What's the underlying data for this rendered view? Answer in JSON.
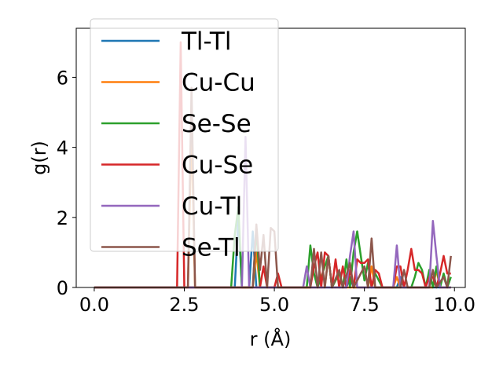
{
  "chart_data": {
    "type": "line",
    "xlabel": "r (Å)",
    "ylabel": "g(r)",
    "xlim": [
      -0.5,
      10.3
    ],
    "ylim": [
      0,
      7.4
    ],
    "xticks": [
      0.0,
      2.5,
      5.0,
      7.5,
      10.0
    ],
    "xtick_labels": [
      "0.0",
      "2.5",
      "5.0",
      "7.5",
      "10.0"
    ],
    "yticks": [
      0,
      2,
      4,
      6
    ],
    "ytick_labels": [
      "0",
      "2",
      "4",
      "6"
    ],
    "grid": false,
    "legend_position": "top-left",
    "series": [
      {
        "name": "Tl-Tl",
        "color": "#1f77b4",
        "points": [
          [
            0,
            0
          ],
          [
            3.9,
            0
          ],
          [
            4.0,
            2.0
          ],
          [
            4.1,
            0
          ],
          [
            4.3,
            0
          ],
          [
            4.4,
            1.6
          ],
          [
            4.5,
            0
          ],
          [
            7.0,
            0
          ],
          [
            7.1,
            0.3
          ],
          [
            7.2,
            0
          ],
          [
            8.4,
            0
          ],
          [
            8.5,
            0.3
          ],
          [
            8.6,
            0
          ],
          [
            9.9,
            0
          ]
        ]
      },
      {
        "name": "Cu-Cu",
        "color": "#ff7f0e",
        "points": [
          [
            0,
            0
          ],
          [
            2.6,
            0
          ],
          [
            2.7,
            4.5
          ],
          [
            2.8,
            0
          ],
          [
            4.4,
            0
          ],
          [
            4.5,
            1.0
          ],
          [
            4.6,
            0
          ],
          [
            6.4,
            0
          ],
          [
            6.5,
            0.9
          ],
          [
            6.6,
            0
          ],
          [
            7.6,
            0
          ],
          [
            7.7,
            0.6
          ],
          [
            7.8,
            0
          ],
          [
            8.3,
            0
          ],
          [
            8.4,
            0.3
          ],
          [
            8.5,
            0
          ],
          [
            9.4,
            0
          ],
          [
            9.5,
            0.5
          ],
          [
            9.6,
            0
          ],
          [
            9.9,
            0
          ]
        ]
      },
      {
        "name": "Se-Se",
        "color": "#2ca02c",
        "points": [
          [
            0,
            0
          ],
          [
            3.8,
            0
          ],
          [
            3.9,
            1.5
          ],
          [
            4.0,
            2.3
          ],
          [
            4.1,
            0
          ],
          [
            4.4,
            0
          ],
          [
            4.5,
            1.7
          ],
          [
            4.6,
            0
          ],
          [
            5.9,
            0
          ],
          [
            6.0,
            1.2
          ],
          [
            6.1,
            0.4
          ],
          [
            6.2,
            0
          ],
          [
            6.5,
            0.9
          ],
          [
            6.6,
            0
          ],
          [
            6.8,
            0.4
          ],
          [
            6.9,
            0
          ],
          [
            7.0,
            0.8
          ],
          [
            7.1,
            0
          ],
          [
            7.2,
            1.0
          ],
          [
            7.3,
            1.6
          ],
          [
            7.4,
            0.9
          ],
          [
            7.5,
            0.2
          ],
          [
            7.6,
            0.7
          ],
          [
            7.7,
            0
          ],
          [
            7.8,
            0.4
          ],
          [
            7.9,
            0.2
          ],
          [
            8.0,
            0
          ],
          [
            8.8,
            0
          ],
          [
            8.9,
            0.3
          ],
          [
            9.0,
            0.7
          ],
          [
            9.1,
            0.5
          ],
          [
            9.2,
            0
          ],
          [
            9.3,
            0.5
          ],
          [
            9.4,
            0
          ],
          [
            9.5,
            0.6
          ],
          [
            9.6,
            0
          ],
          [
            9.7,
            0.4
          ],
          [
            9.8,
            0
          ],
          [
            9.9,
            0.3
          ]
        ]
      },
      {
        "name": "Cu-Se",
        "color": "#d62728",
        "points": [
          [
            0,
            0
          ],
          [
            2.3,
            0
          ],
          [
            2.4,
            7.0
          ],
          [
            2.5,
            0
          ],
          [
            4.6,
            0
          ],
          [
            4.7,
            0.6
          ],
          [
            4.8,
            0
          ],
          [
            5.0,
            0
          ],
          [
            5.1,
            0.4
          ],
          [
            5.2,
            0
          ],
          [
            6.0,
            0
          ],
          [
            6.1,
            0.6
          ],
          [
            6.2,
            1.0
          ],
          [
            6.3,
            0
          ],
          [
            6.4,
            1.0
          ],
          [
            6.5,
            0.9
          ],
          [
            6.6,
            0
          ],
          [
            6.7,
            0.8
          ],
          [
            6.8,
            0
          ],
          [
            6.9,
            0.6
          ],
          [
            7.0,
            0
          ],
          [
            7.1,
            0.5
          ],
          [
            7.2,
            0
          ],
          [
            7.3,
            0.8
          ],
          [
            7.4,
            0.7
          ],
          [
            7.5,
            0.7
          ],
          [
            7.6,
            0.8
          ],
          [
            7.7,
            0
          ],
          [
            7.8,
            0.5
          ],
          [
            7.9,
            0.4
          ],
          [
            8.0,
            0
          ],
          [
            8.3,
            0
          ],
          [
            8.4,
            0.6
          ],
          [
            8.5,
            0.6
          ],
          [
            8.6,
            0
          ],
          [
            8.7,
            0.5
          ],
          [
            8.8,
            1.1
          ],
          [
            8.9,
            0.5
          ],
          [
            9.0,
            0.5
          ],
          [
            9.1,
            0.4
          ],
          [
            9.2,
            0
          ],
          [
            9.3,
            0.3
          ],
          [
            9.4,
            0.3
          ],
          [
            9.5,
            0
          ],
          [
            9.6,
            0.4
          ],
          [
            9.7,
            0.9
          ],
          [
            9.8,
            0.4
          ],
          [
            9.9,
            0.4
          ]
        ]
      },
      {
        "name": "Cu-Tl",
        "color": "#9467bd",
        "points": [
          [
            0,
            0
          ],
          [
            4.1,
            0
          ],
          [
            4.2,
            4.3
          ],
          [
            4.3,
            0
          ],
          [
            5.8,
            0
          ],
          [
            5.9,
            0.6
          ],
          [
            6.0,
            0
          ],
          [
            7.0,
            0
          ],
          [
            7.1,
            0.9
          ],
          [
            7.2,
            1.6
          ],
          [
            7.3,
            0
          ],
          [
            8.3,
            0
          ],
          [
            8.4,
            1.2
          ],
          [
            8.5,
            0
          ],
          [
            9.3,
            0
          ],
          [
            9.4,
            1.9
          ],
          [
            9.5,
            0.9
          ],
          [
            9.6,
            0
          ],
          [
            9.9,
            0
          ]
        ]
      },
      {
        "name": "Se-Tl",
        "color": "#8c564b",
        "points": [
          [
            0,
            0
          ],
          [
            2.6,
            0
          ],
          [
            2.7,
            5.7
          ],
          [
            2.8,
            0
          ],
          [
            4.4,
            0
          ],
          [
            4.5,
            1.8
          ],
          [
            4.6,
            0.5
          ],
          [
            4.7,
            1.5
          ],
          [
            4.8,
            0
          ],
          [
            4.9,
            1.7
          ],
          [
            5.0,
            1.6
          ],
          [
            5.1,
            0
          ],
          [
            6.0,
            0
          ],
          [
            6.1,
            1.1
          ],
          [
            6.2,
            0
          ],
          [
            6.3,
            1.0
          ],
          [
            6.4,
            0
          ],
          [
            6.5,
            0.9
          ],
          [
            6.6,
            0
          ],
          [
            6.8,
            0.5
          ],
          [
            6.9,
            0
          ],
          [
            7.1,
            0.7
          ],
          [
            7.2,
            0
          ],
          [
            7.5,
            0.6
          ],
          [
            7.6,
            0
          ],
          [
            7.7,
            1.4
          ],
          [
            7.8,
            0
          ],
          [
            8.5,
            0
          ],
          [
            8.6,
            0.5
          ],
          [
            8.7,
            0
          ],
          [
            9.3,
            0
          ],
          [
            9.4,
            0.5
          ],
          [
            9.5,
            0
          ],
          [
            9.7,
            0.3
          ],
          [
            9.8,
            0
          ],
          [
            9.9,
            0.9
          ]
        ]
      }
    ]
  }
}
